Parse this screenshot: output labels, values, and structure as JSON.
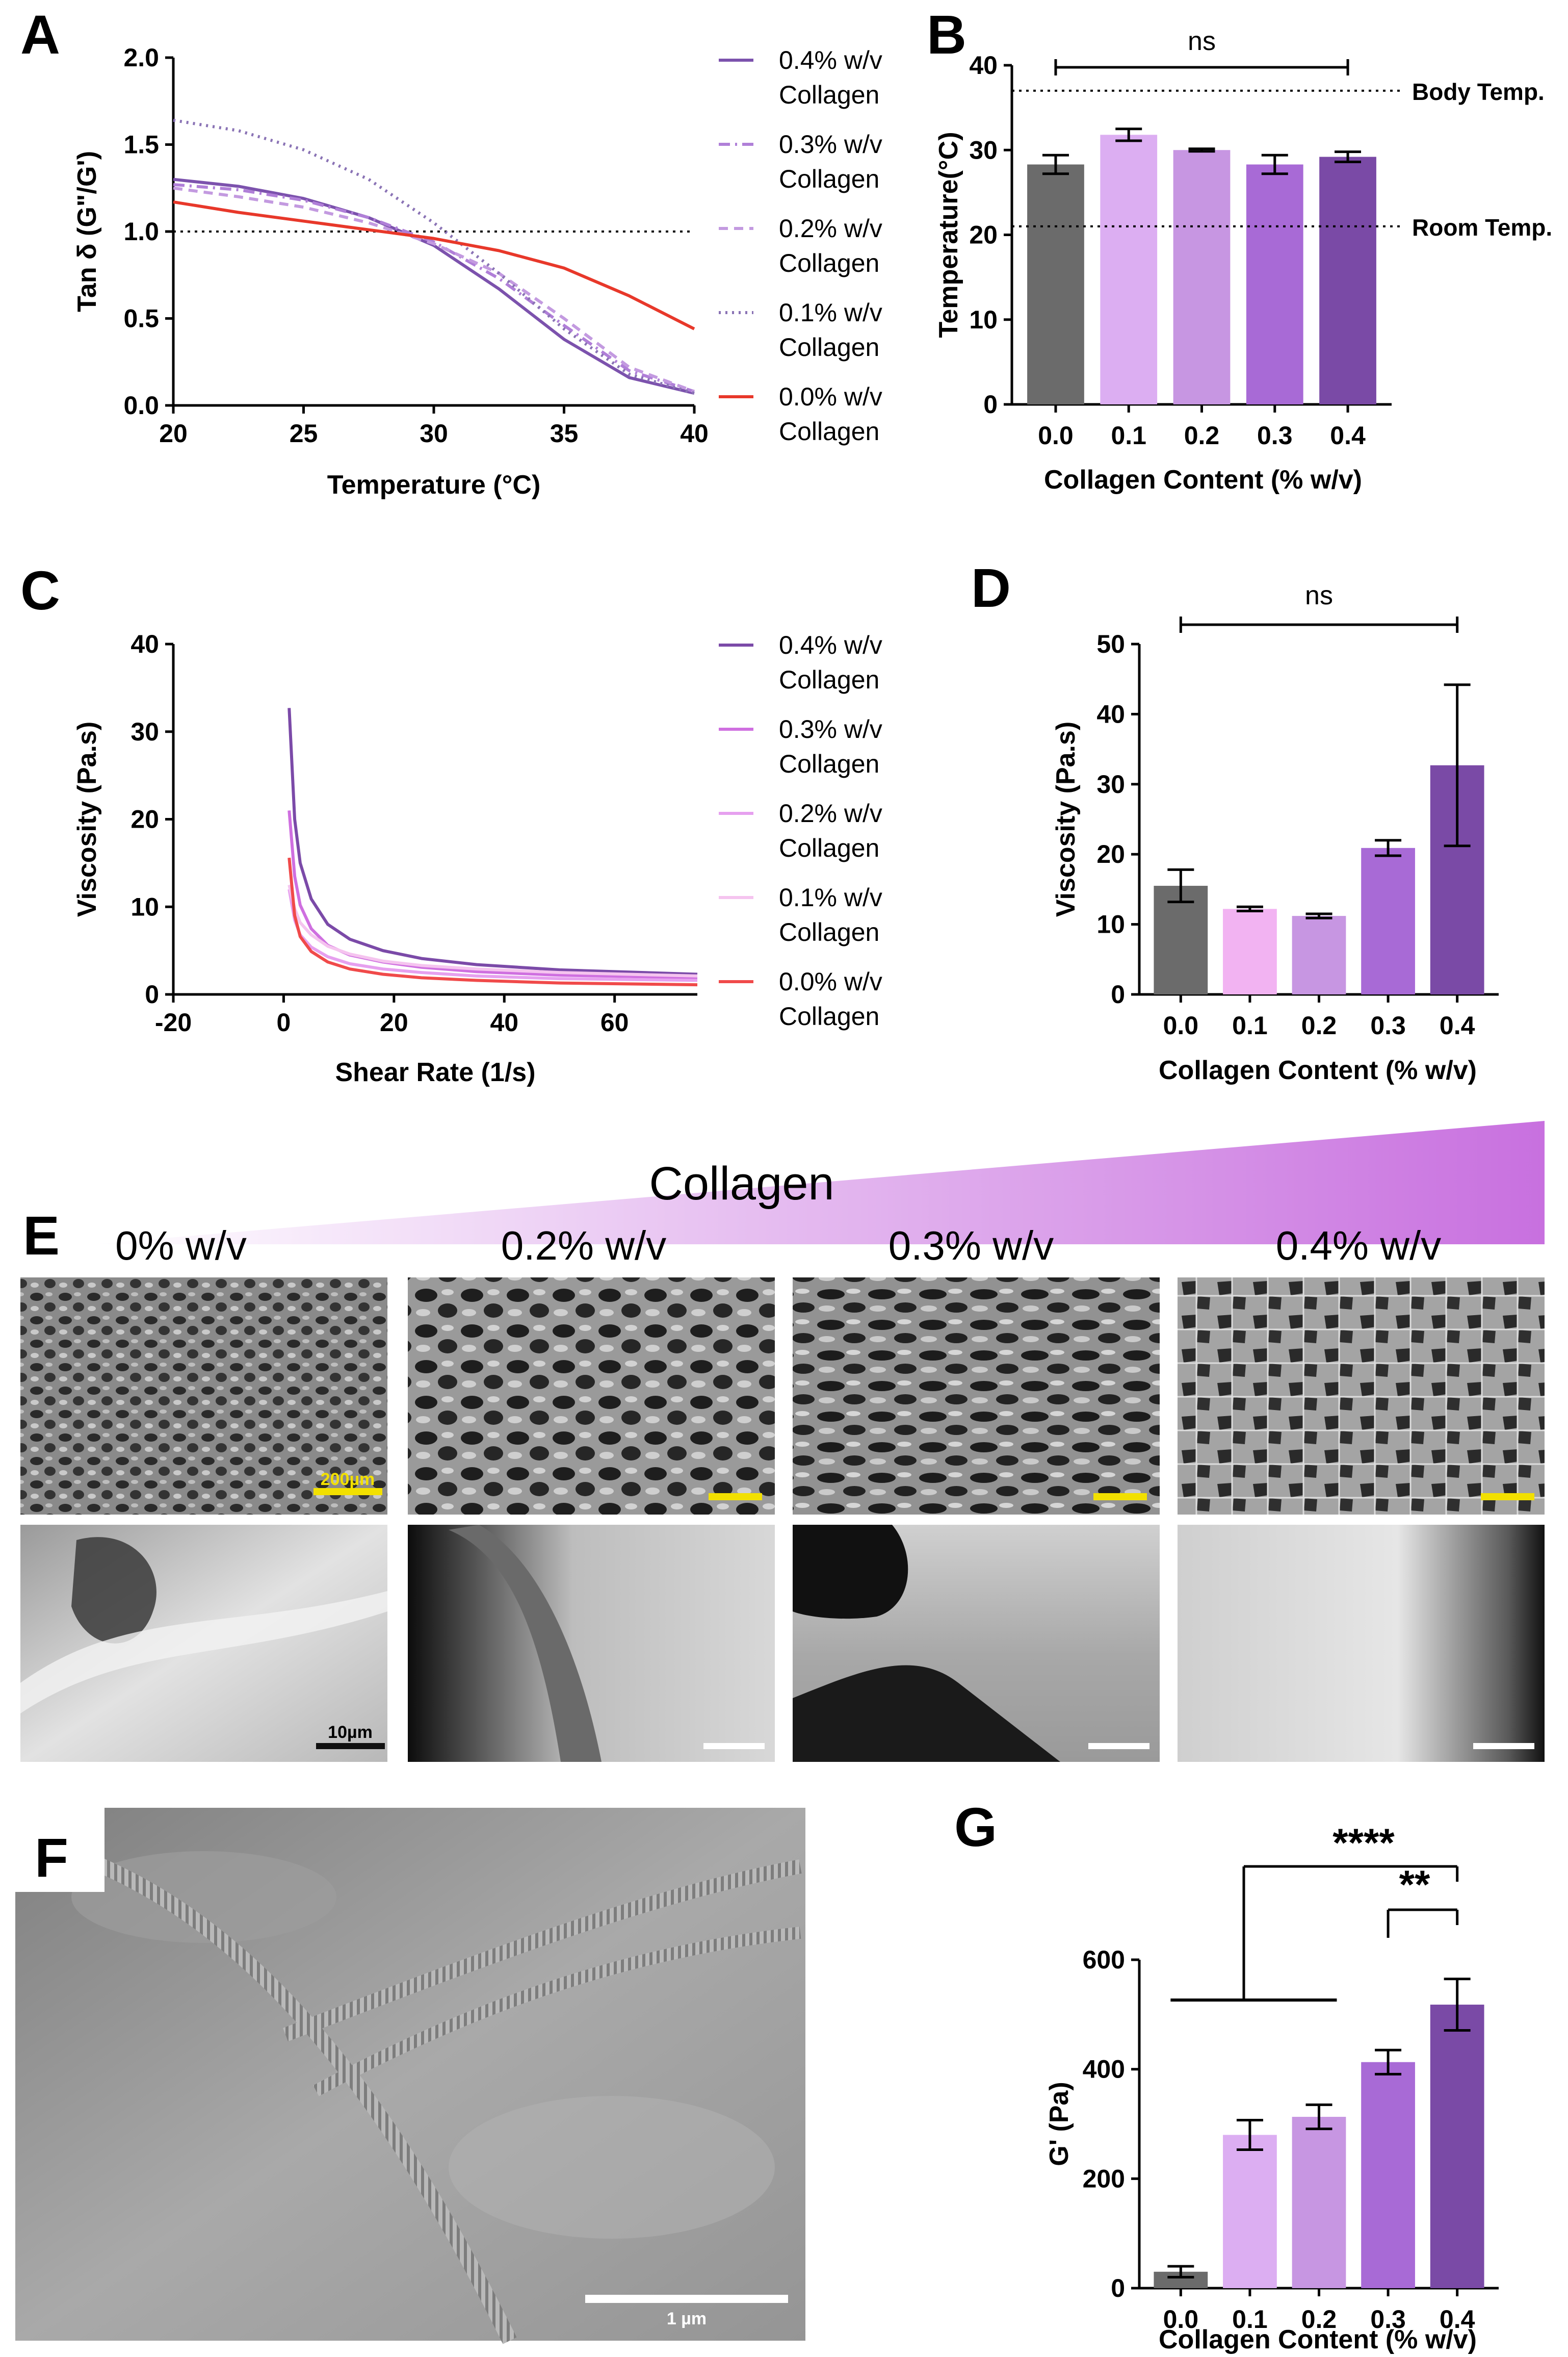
{
  "panels": {
    "A": "A",
    "B": "B",
    "C": "C",
    "D": "D",
    "E": "E",
    "F": "F",
    "G": "G"
  },
  "colors": {
    "c00": "#e8382a",
    "c01_dot": "#8a73b5",
    "c02": "#c39ae0",
    "c03": "#b07fd8",
    "c04": "#7c52ad",
    "bar00": "#6b6b6b",
    "bar01": "#dcaef2",
    "bar02": "#c796e2",
    "bar03": "#a86ad6",
    "bar04": "#7a4aa6",
    "D_bar01": "#f2b3f2",
    "D_bar02": "#c796e2",
    "C_01": "#f5c4ef",
    "C_02": "#e6a0ef",
    "C_03": "#cf6fe0",
    "C_04": "#7b4aa8",
    "C_00": "#f04a4a",
    "scale_yellow": "#f2e000"
  },
  "chart_data": [
    {
      "id": "A",
      "type": "line",
      "xlabel": "Temperature (°C)",
      "ylabel": "Tan δ (G\"/G')",
      "xlim": [
        20,
        40
      ],
      "ylim": [
        0.0,
        2.0
      ],
      "xticks": [
        "20",
        "25",
        "30",
        "35",
        "40"
      ],
      "yticks": [
        "0.0",
        "0.5",
        "1.0",
        "1.5",
        "2.0"
      ],
      "reference_line": 1.0,
      "x": [
        20,
        22.5,
        25,
        27.5,
        30,
        32.5,
        35,
        37.5,
        40
      ],
      "series": [
        {
          "name": "0.4% w/v Collagen",
          "style": "solid",
          "values": [
            1.3,
            1.26,
            1.19,
            1.08,
            0.92,
            0.67,
            0.38,
            0.16,
            0.07
          ]
        },
        {
          "name": "0.3% w/v Collagen",
          "style": "dashdot",
          "values": [
            1.27,
            1.24,
            1.18,
            1.08,
            0.94,
            0.73,
            0.46,
            0.2,
            0.08
          ]
        },
        {
          "name": "0.2% w/v Collagen",
          "style": "dashed",
          "values": [
            1.25,
            1.2,
            1.14,
            1.05,
            0.93,
            0.76,
            0.5,
            0.22,
            0.08
          ]
        },
        {
          "name": "0.1% w/v Collagen",
          "style": "dotted",
          "values": [
            1.64,
            1.58,
            1.47,
            1.3,
            1.05,
            0.76,
            0.44,
            0.18,
            0.07
          ]
        },
        {
          "name": "0.0% w/v Collagen",
          "style": "solid",
          "values": [
            1.17,
            1.11,
            1.06,
            1.01,
            0.96,
            0.89,
            0.79,
            0.63,
            0.44
          ]
        }
      ],
      "legend": [
        {
          "line1": "0.4% w/v",
          "line2": "Collagen"
        },
        {
          "line1": "0.3% w/v",
          "line2": "Collagen"
        },
        {
          "line1": "0.2% w/v",
          "line2": "Collagen"
        },
        {
          "line1": "0.1% w/v",
          "line2": "Collagen"
        },
        {
          "line1": "0.0% w/v",
          "line2": "Collagen"
        }
      ]
    },
    {
      "id": "B",
      "type": "bar",
      "xlabel": "Collagen Content  (% w/v)",
      "ylabel": "Temperature(°C)",
      "ylim": [
        0,
        40
      ],
      "yticks": [
        "0",
        "10",
        "20",
        "30",
        "40"
      ],
      "categories": [
        "0.0",
        "0.1",
        "0.2",
        "0.3",
        "0.4"
      ],
      "values": [
        28.3,
        31.8,
        30.0,
        28.3,
        29.2
      ],
      "errors": [
        1.1,
        0.7,
        0.15,
        1.1,
        0.6
      ],
      "reference_lines": [
        {
          "label": "Body Temp.",
          "value": 37
        },
        {
          "label": "Room Temp.",
          "value": 21
        }
      ],
      "significance": "ns"
    },
    {
      "id": "C",
      "type": "line",
      "xlabel": "Shear Rate (1/s)",
      "ylabel": "Viscosity (Pa.s)",
      "xlim": [
        -20,
        75
      ],
      "ylim": [
        0,
        40
      ],
      "xticks": [
        "-20",
        "0",
        "20",
        "40",
        "60"
      ],
      "yticks": [
        "0",
        "10",
        "20",
        "30",
        "40"
      ],
      "x": [
        1,
        2,
        3,
        5,
        8,
        12,
        18,
        25,
        35,
        50,
        75
      ],
      "series": [
        {
          "name": "0.4% w/v Collagen",
          "values": [
            32.7,
            20.0,
            15.0,
            10.9,
            8.0,
            6.3,
            5.0,
            4.1,
            3.4,
            2.8,
            2.3
          ]
        },
        {
          "name": "0.3% w/v Collagen",
          "values": [
            21.0,
            13.5,
            10.2,
            7.5,
            5.6,
            4.5,
            3.7,
            3.1,
            2.6,
            2.2,
            1.9
          ]
        },
        {
          "name": "0.2% w/v Collagen",
          "values": [
            12.0,
            8.5,
            6.8,
            5.4,
            4.3,
            3.5,
            2.9,
            2.5,
            2.1,
            1.8,
            1.6
          ]
        },
        {
          "name": "0.1% w/v Collagen",
          "values": [
            12.5,
            9.8,
            8.2,
            6.8,
            5.5,
            4.6,
            3.8,
            3.3,
            2.9,
            2.5,
            2.1
          ]
        },
        {
          "name": "0.0% w/v Collagen",
          "values": [
            15.6,
            9.0,
            6.6,
            4.9,
            3.7,
            2.9,
            2.3,
            1.9,
            1.6,
            1.3,
            1.1
          ]
        }
      ],
      "legend": [
        {
          "line1": "0.4% w/v",
          "line2": "Collagen"
        },
        {
          "line1": "0.3% w/v",
          "line2": "Collagen"
        },
        {
          "line1": "0.2% w/v",
          "line2": "Collagen"
        },
        {
          "line1": "0.1% w/v",
          "line2": "Collagen"
        },
        {
          "line1": "0.0% w/v",
          "line2": "Collagen"
        }
      ]
    },
    {
      "id": "D",
      "type": "bar",
      "xlabel": "Collagen Content  (% w/v)",
      "ylabel": "Viscosity (Pa.s)",
      "ylim": [
        0,
        50
      ],
      "yticks": [
        "0",
        "10",
        "20",
        "30",
        "40",
        "50"
      ],
      "categories": [
        "0.0",
        "0.1",
        "0.2",
        "0.3",
        "0.4"
      ],
      "values": [
        15.5,
        12.2,
        11.2,
        20.9,
        32.7
      ],
      "errors": [
        2.3,
        0.3,
        0.3,
        1.1,
        11.5
      ],
      "significance": "ns"
    },
    {
      "id": "G",
      "type": "bar",
      "xlabel": "Collagen Content  (% w/v)",
      "ylabel": "G' (Pa)",
      "ylim": [
        0,
        600
      ],
      "yticks": [
        "0",
        "200",
        "400",
        "600"
      ],
      "categories": [
        "0.0",
        "0.1",
        "0.2",
        "0.3",
        "0.4"
      ],
      "values": [
        30,
        280,
        313,
        413,
        518
      ],
      "errors": [
        10,
        27,
        22,
        22,
        47
      ],
      "significance": [
        {
          "label": "****"
        },
        {
          "label": "**"
        }
      ]
    }
  ],
  "panelE": {
    "title": "Collagen",
    "columns": [
      "0% w/v",
      "0.2% w/v",
      "0.3% w/v",
      "0.4% w/v"
    ],
    "scale_top": "200µm",
    "scale_bottom": "10µm"
  },
  "panelF": {
    "scale": "1 µm"
  }
}
